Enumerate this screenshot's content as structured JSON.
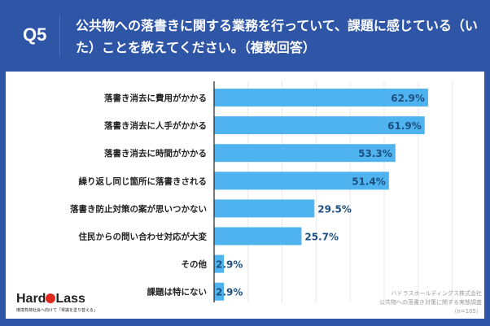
{
  "header": {
    "q": "Q5",
    "title": "公共物への落書きに関する業務を行っていて、課題に感じている（いた）ことを教えてください。（複数回答）"
  },
  "chart_data": {
    "type": "bar",
    "orientation": "horizontal",
    "categories": [
      "落書き消去に費用がかかる",
      "落書き消去に人手がかかる",
      "落書き消去に時間がかかる",
      "繰り返し同じ箇所に落書きされる",
      "落書き防止対策の案が思いつかない",
      "住民からの問い合わせ対応が大変",
      "その他",
      "課題は特にない"
    ],
    "values": [
      62.9,
      61.9,
      53.3,
      51.4,
      29.5,
      25.7,
      2.9,
      2.9
    ],
    "labels": [
      "62.9%",
      "61.9%",
      "53.3%",
      "51.4%",
      "29.5%",
      "25.7%",
      "2.9%",
      "2.9%"
    ],
    "xlim": [
      0,
      70
    ],
    "grid": true,
    "bar_color": "#4fb3f0"
  },
  "logo": {
    "name_a": "Hard",
    "name_b": "Lass",
    "tagline": "環境負荷社会へ向けて「常識を塗り替える」"
  },
  "source": {
    "company": "ハドラスホールディングス株式会社",
    "survey": "公共物への落書き対策に関する実態調査",
    "n": "（n=105）"
  }
}
